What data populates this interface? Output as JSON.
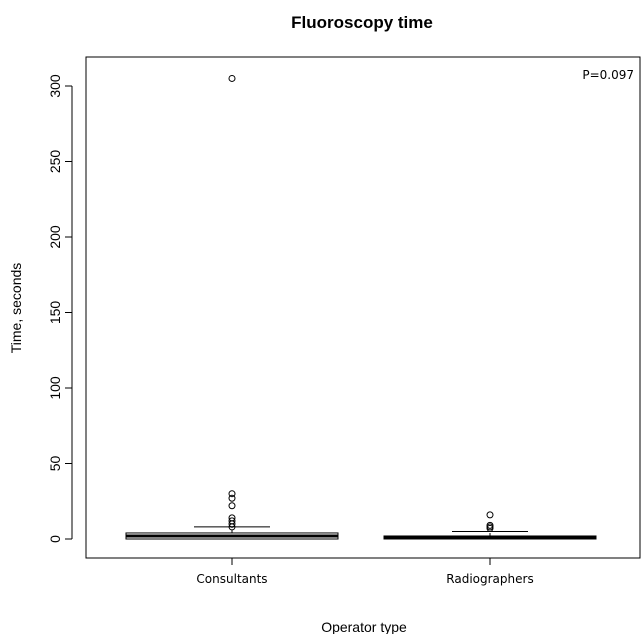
{
  "chart_data": {
    "type": "box",
    "title": "Fluoroscopy time",
    "xlabel": "Operator type",
    "ylabel": "Time, seconds",
    "ylim": [
      -14,
      320
    ],
    "yticks": [
      0,
      50,
      100,
      150,
      200,
      250,
      300
    ],
    "ytick_labels": [
      "0",
      "50",
      "100",
      "150",
      "200",
      "250",
      "300"
    ],
    "grid": false,
    "annotation": "P=0.097",
    "categories": [
      "Consultants",
      "Radiographers"
    ],
    "series": [
      {
        "category": "Consultants",
        "min": 0,
        "q1": 0,
        "median": 2,
        "q3": 4,
        "whisker_high": 8,
        "outliers": [
          305,
          30,
          27,
          22,
          14,
          12,
          10,
          8
        ]
      },
      {
        "category": "Radiographers",
        "min": 0,
        "q1": 0,
        "median": 1,
        "q3": 2,
        "whisker_high": 5,
        "outliers": [
          16,
          9,
          8,
          7
        ]
      }
    ]
  }
}
